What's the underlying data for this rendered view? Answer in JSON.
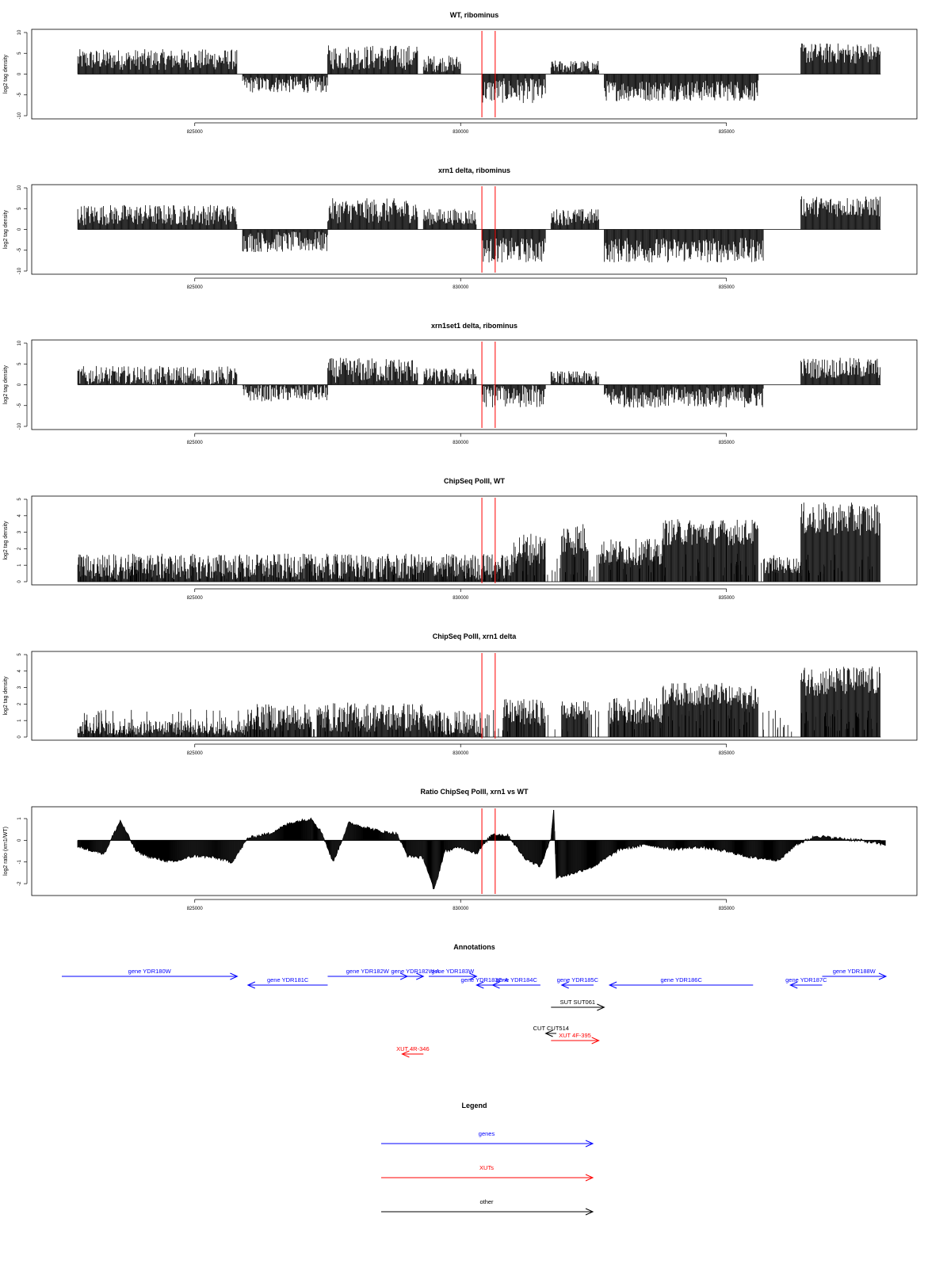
{
  "colors": {
    "genes": "#0000ff",
    "xuts": "#ff0000",
    "other": "#000000",
    "marker": "#ff0000",
    "bars": "#000000"
  },
  "x_ticks": [
    825000,
    830000,
    835000
  ],
  "x_range": [
    822500,
    838000
  ],
  "markers": [
    830400,
    830650
  ],
  "chart_data": [
    {
      "type": "bar",
      "title": "WT, ribominus",
      "ylabel": "log2 tag density",
      "ylim": [
        -10,
        10
      ],
      "yticks": [
        -10,
        -5,
        0,
        5,
        10
      ],
      "segments": [
        {
          "x0": 822800,
          "x1": 825800,
          "level": 3.5,
          "amp": 2.5
        },
        {
          "x0": 825900,
          "x1": 827500,
          "level": -2.5,
          "amp": 2.0
        },
        {
          "x0": 827500,
          "x1": 829200,
          "level": 4.0,
          "amp": 3.0
        },
        {
          "x0": 829300,
          "x1": 830000,
          "level": 2.5,
          "amp": 2.0
        },
        {
          "x0": 830400,
          "x1": 831600,
          "level": -4.0,
          "amp": 3.0
        },
        {
          "x0": 831700,
          "x1": 832600,
          "level": 1.8,
          "amp": 1.5
        },
        {
          "x0": 832700,
          "x1": 835600,
          "level": -4.0,
          "amp": 2.5
        },
        {
          "x0": 836400,
          "x1": 837900,
          "level": 5.0,
          "amp": 2.5
        }
      ]
    },
    {
      "type": "bar",
      "title": "xrn1 delta, ribominus",
      "ylabel": "log2 tag density",
      "ylim": [
        -10,
        10
      ],
      "yticks": [
        -10,
        -5,
        0,
        5,
        10
      ],
      "segments": [
        {
          "x0": 822800,
          "x1": 825800,
          "level": 3.5,
          "amp": 2.5
        },
        {
          "x0": 825900,
          "x1": 827500,
          "level": -3.0,
          "amp": 2.5
        },
        {
          "x0": 827500,
          "x1": 829200,
          "level": 4.5,
          "amp": 3.0
        },
        {
          "x0": 829300,
          "x1": 830300,
          "level": 3.0,
          "amp": 2.0
        },
        {
          "x0": 830400,
          "x1": 831600,
          "level": -5.0,
          "amp": 3.0
        },
        {
          "x0": 831700,
          "x1": 832600,
          "level": 3.0,
          "amp": 2.0
        },
        {
          "x0": 832700,
          "x1": 835700,
          "level": -5.0,
          "amp": 3.0
        },
        {
          "x0": 836400,
          "x1": 837900,
          "level": 5.5,
          "amp": 2.5
        }
      ]
    },
    {
      "type": "bar",
      "title": "xrn1set1 delta, ribominus",
      "ylabel": "log2 tag density",
      "ylim": [
        -10,
        10
      ],
      "yticks": [
        -10,
        -5,
        0,
        5,
        10
      ],
      "segments": [
        {
          "x0": 822800,
          "x1": 825800,
          "level": 2.0,
          "amp": 2.5
        },
        {
          "x0": 825900,
          "x1": 827500,
          "level": -2.0,
          "amp": 2.0
        },
        {
          "x0": 827500,
          "x1": 829200,
          "level": 3.5,
          "amp": 3.0
        },
        {
          "x0": 829300,
          "x1": 830300,
          "level": 2.0,
          "amp": 2.0
        },
        {
          "x0": 830400,
          "x1": 831600,
          "level": -2.5,
          "amp": 3.0
        },
        {
          "x0": 831700,
          "x1": 832600,
          "level": 1.5,
          "amp": 1.8
        },
        {
          "x0": 832700,
          "x1": 835700,
          "level": -3.0,
          "amp": 2.5
        },
        {
          "x0": 836400,
          "x1": 837900,
          "level": 4.0,
          "amp": 2.5
        }
      ]
    },
    {
      "type": "bar",
      "title": "ChipSeq PolII, WT",
      "ylabel": "log2 tag density",
      "ylim": [
        0,
        5
      ],
      "yticks": [
        0,
        1,
        2,
        3,
        4,
        5
      ],
      "segments": [
        {
          "x0": 822800,
          "x1": 831000,
          "level": 0.9,
          "amp": 0.8
        },
        {
          "x0": 831000,
          "x1": 831600,
          "level": 2.0,
          "amp": 1.0
        },
        {
          "x0": 831900,
          "x1": 832400,
          "level": 2.6,
          "amp": 1.0
        },
        {
          "x0": 832600,
          "x1": 833800,
          "level": 1.8,
          "amp": 0.8
        },
        {
          "x0": 833800,
          "x1": 835000,
          "level": 3.0,
          "amp": 0.8
        },
        {
          "x0": 835000,
          "x1": 835600,
          "level": 3.0,
          "amp": 0.8
        },
        {
          "x0": 835700,
          "x1": 836400,
          "level": 1.0,
          "amp": 0.5
        },
        {
          "x0": 836400,
          "x1": 837900,
          "level": 3.8,
          "amp": 1.0
        }
      ]
    },
    {
      "type": "bar",
      "title": "ChipSeq PolII, xrn1 delta",
      "ylabel": "log2 tag density",
      "ylim": [
        0,
        5
      ],
      "yticks": [
        0,
        1,
        2,
        3,
        4,
        5
      ],
      "segments": [
        {
          "x0": 822800,
          "x1": 826000,
          "level": 0.4,
          "amp": 0.6
        },
        {
          "x0": 826000,
          "x1": 827200,
          "level": 1.2,
          "amp": 0.8
        },
        {
          "x0": 827300,
          "x1": 829300,
          "level": 1.2,
          "amp": 0.9
        },
        {
          "x0": 829300,
          "x1": 830400,
          "level": 0.8,
          "amp": 0.8
        },
        {
          "x0": 830800,
          "x1": 831600,
          "level": 1.5,
          "amp": 0.8
        },
        {
          "x0": 831900,
          "x1": 832400,
          "level": 1.6,
          "amp": 0.6
        },
        {
          "x0": 832800,
          "x1": 833800,
          "level": 1.6,
          "amp": 0.8
        },
        {
          "x0": 833800,
          "x1": 835000,
          "level": 2.6,
          "amp": 0.7
        },
        {
          "x0": 835000,
          "x1": 835600,
          "level": 2.4,
          "amp": 0.7
        },
        {
          "x0": 836400,
          "x1": 837900,
          "level": 3.4,
          "amp": 0.9
        }
      ]
    },
    {
      "type": "area",
      "title": "Ratio ChipSeq PolII, xrn1 vs WT",
      "ylabel": "log2 ratio (xrn1/WT)",
      "ylim": [
        -2.4,
        1.4
      ],
      "yticks": [
        -2,
        -1,
        0,
        1
      ],
      "x": [
        822800,
        823300,
        823600,
        823900,
        824200,
        824600,
        825000,
        825400,
        825700,
        826000,
        826400,
        826800,
        827200,
        827400,
        827600,
        827900,
        828200,
        828500,
        828800,
        829000,
        829300,
        829500,
        829700,
        830000,
        830300,
        830600,
        830900,
        831200,
        831500,
        831700,
        831750,
        831800,
        832000,
        832500,
        833000,
        833500,
        834000,
        834500,
        835000,
        835500,
        836000,
        836300,
        836700,
        837000,
        837500,
        838000
      ],
      "values": [
        -0.3,
        -0.6,
        0.9,
        -0.5,
        -0.8,
        -1.0,
        -0.7,
        -0.8,
        -1.0,
        0.1,
        0.3,
        0.8,
        1.0,
        0.3,
        -1.0,
        0.8,
        0.6,
        0.4,
        0.3,
        -0.7,
        -0.8,
        -2.3,
        -0.5,
        -0.3,
        -0.6,
        0.3,
        0.2,
        -0.8,
        -1.2,
        0.1,
        1.5,
        -1.7,
        -1.6,
        -1.2,
        -0.4,
        -0.2,
        -0.4,
        -0.3,
        -0.5,
        -0.8,
        -0.9,
        -0.2,
        0.2,
        0.1,
        0.0,
        -0.2
      ]
    }
  ],
  "annotations": {
    "title": "Annotations",
    "items": [
      {
        "label": "gene YDR180W",
        "type": "genes",
        "start": 822500,
        "end": 825800,
        "dir": "right",
        "row": 0
      },
      {
        "label": "gene YDR181C",
        "type": "genes",
        "start": 826000,
        "end": 827500,
        "dir": "left",
        "row": 1
      },
      {
        "label": "gene YDR182W",
        "type": "genes",
        "start": 827500,
        "end": 829000,
        "dir": "right",
        "row": 0
      },
      {
        "label": "gene YDR182W-A",
        "type": "genes",
        "start": 829000,
        "end": 829300,
        "dir": "right",
        "row": 0
      },
      {
        "label": "gene YDR183W",
        "type": "genes",
        "start": 829400,
        "end": 830300,
        "dir": "right",
        "row": 0
      },
      {
        "label": "gene YDR183C-A",
        "type": "genes",
        "start": 830300,
        "end": 830600,
        "dir": "left",
        "row": 1
      },
      {
        "label": "gene YDR184C",
        "type": "genes",
        "start": 830600,
        "end": 831500,
        "dir": "left",
        "row": 1
      },
      {
        "label": "gene YDR185C",
        "type": "genes",
        "start": 831900,
        "end": 832500,
        "dir": "left",
        "row": 1
      },
      {
        "label": "gene YDR186C",
        "type": "genes",
        "start": 832800,
        "end": 835500,
        "dir": "left",
        "row": 1
      },
      {
        "label": "gene YDR187C",
        "type": "genes",
        "start": 836200,
        "end": 836800,
        "dir": "left",
        "row": 1
      },
      {
        "label": "gene YDR188W",
        "type": "genes",
        "start": 836800,
        "end": 838000,
        "dir": "right",
        "row": 0
      },
      {
        "label": "SUT SUT061",
        "type": "other",
        "start": 831700,
        "end": 832700,
        "dir": "right",
        "row": 2
      },
      {
        "label": "CUT CUT514",
        "type": "other",
        "start": 831600,
        "end": 831800,
        "dir": "left",
        "row": 3
      },
      {
        "label": "XUT 4F-395",
        "type": "xuts",
        "start": 831700,
        "end": 832600,
        "dir": "right",
        "row": 4
      },
      {
        "label": "XUT 4R-346",
        "type": "xuts",
        "start": 828900,
        "end": 829300,
        "dir": "left",
        "row": 5
      }
    ]
  },
  "legend": {
    "title": "Legend",
    "entries": [
      {
        "label": "genes",
        "type": "genes"
      },
      {
        "label": "XUTs",
        "type": "xuts"
      },
      {
        "label": "other",
        "type": "other"
      }
    ]
  }
}
